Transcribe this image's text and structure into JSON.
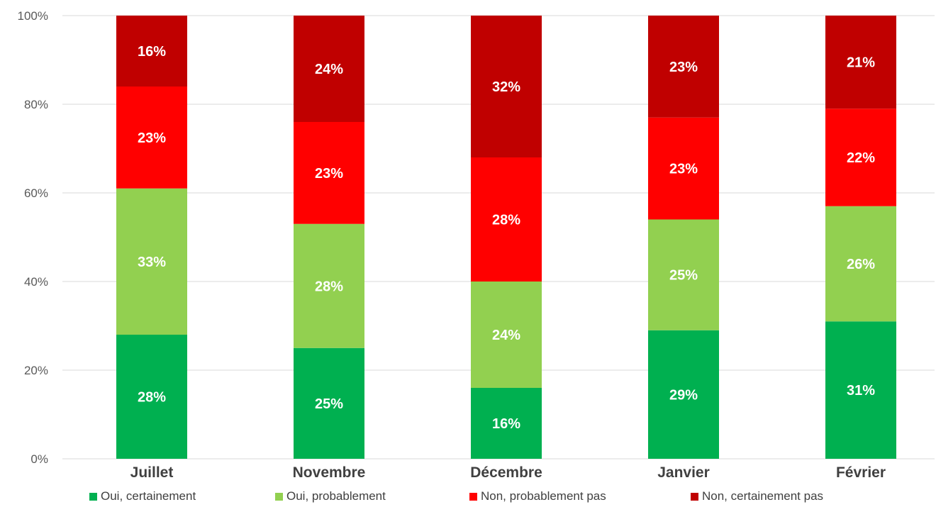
{
  "chart_data": {
    "type": "bar",
    "stacked": true,
    "categories": [
      "Juillet",
      "Novembre",
      "Décembre",
      "Janvier",
      "Février"
    ],
    "series": [
      {
        "name": "Oui, certainement",
        "color": "#00b050",
        "values": [
          28,
          25,
          16,
          29,
          31
        ]
      },
      {
        "name": "Oui, probablement",
        "color": "#92d050",
        "values": [
          33,
          28,
          24,
          25,
          26
        ]
      },
      {
        "name": "Non, probablement pas",
        "color": "#ff0000",
        "values": [
          23,
          23,
          28,
          23,
          22
        ]
      },
      {
        "name": "Non, certainement pas",
        "color": "#c00000",
        "values": [
          16,
          24,
          32,
          23,
          21
        ]
      }
    ],
    "y_ticks": [
      "0%",
      "20%",
      "40%",
      "60%",
      "80%",
      "100%"
    ],
    "ylim": [
      0,
      100
    ],
    "grid": true,
    "legend_position": "bottom",
    "data_label_suffix": "%"
  }
}
